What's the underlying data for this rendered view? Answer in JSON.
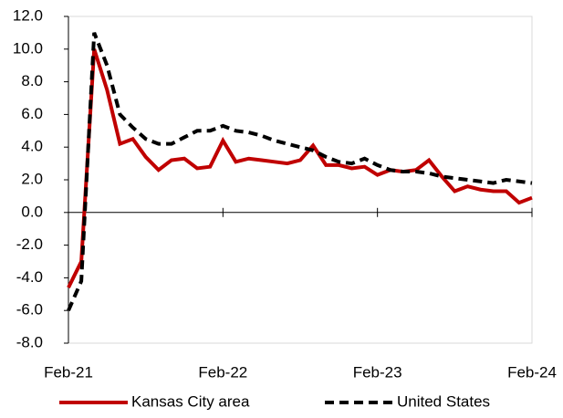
{
  "chart_data": {
    "type": "line",
    "categories": [
      "Feb-21",
      null,
      null,
      null,
      null,
      null,
      null,
      null,
      null,
      null,
      null,
      null,
      "Feb-22",
      null,
      null,
      null,
      null,
      null,
      null,
      null,
      null,
      null,
      null,
      null,
      "Feb-23",
      null,
      null,
      null,
      null,
      null,
      null,
      null,
      null,
      null,
      null,
      null,
      "Feb-24"
    ],
    "series": [
      {
        "name": "Kansas City area",
        "color": "#c00000",
        "dash": false,
        "values": [
          -4.6,
          -3.0,
          10.0,
          7.5,
          4.2,
          4.5,
          3.4,
          2.6,
          3.2,
          3.3,
          2.7,
          2.8,
          4.4,
          3.1,
          3.3,
          3.2,
          3.1,
          3.0,
          3.2,
          4.1,
          2.9,
          2.9,
          2.7,
          2.8,
          2.3,
          2.6,
          2.5,
          2.6,
          3.2,
          2.2,
          1.3,
          1.6,
          1.4,
          1.3,
          1.3,
          0.6,
          0.9
        ]
      },
      {
        "name": "United States",
        "color": "#000000",
        "dash": true,
        "values": [
          -6.0,
          -4.2,
          11.0,
          9.0,
          6.0,
          5.2,
          4.5,
          4.2,
          4.2,
          4.6,
          5.0,
          5.0,
          5.3,
          5.0,
          4.9,
          4.7,
          4.4,
          4.2,
          4.0,
          3.8,
          3.4,
          3.1,
          3.0,
          3.3,
          2.9,
          2.6,
          2.5,
          2.5,
          2.4,
          2.2,
          2.1,
          2.0,
          1.9,
          1.8,
          2.0,
          1.9,
          1.8
        ]
      }
    ],
    "ylim": [
      -8,
      12
    ],
    "yticks": [
      {
        "value": -8,
        "label": "-8.0"
      },
      {
        "value": -6,
        "label": "-6.0"
      },
      {
        "value": -4,
        "label": "-4.0"
      },
      {
        "value": -2,
        "label": "-2.0"
      },
      {
        "value": 0,
        "label": "0.0"
      },
      {
        "value": 2,
        "label": "2.0"
      },
      {
        "value": 4,
        "label": "4.0"
      },
      {
        "value": 6,
        "label": "6.0"
      },
      {
        "value": 8,
        "label": "8.0"
      },
      {
        "value": 10,
        "label": "10.0"
      },
      {
        "value": 12,
        "label": "12.0"
      }
    ],
    "grid": false,
    "legend": "bottom"
  }
}
